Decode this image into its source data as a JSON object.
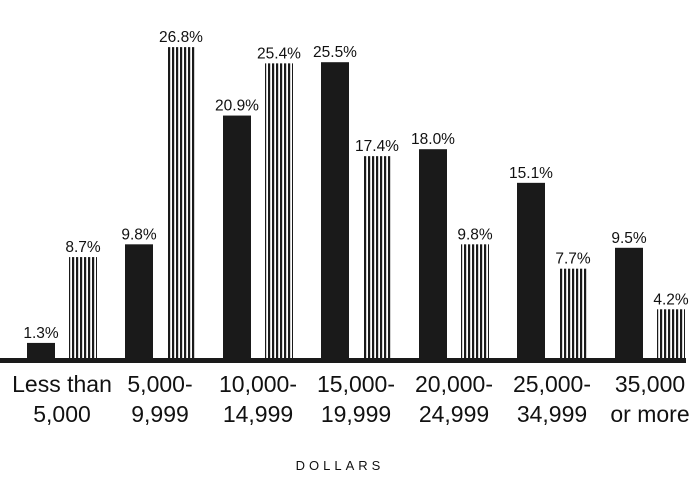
{
  "chart_data": {
    "type": "bar",
    "title": "",
    "xlabel": "DOLLARS",
    "ylabel": "",
    "ylim": [
      0,
      28
    ],
    "grid": false,
    "categories": [
      [
        "Less than",
        "5,000"
      ],
      [
        "5,000-",
        "9,999"
      ],
      [
        "10,000-",
        "14,999"
      ],
      [
        "15,000-",
        "19,999"
      ],
      [
        "20,000-",
        "24,999"
      ],
      [
        "25,000-",
        "34,999"
      ],
      [
        "35,000",
        "or more"
      ]
    ],
    "series": [
      {
        "style": "solid",
        "color": "#1a1a1a",
        "values": [
          1.3,
          9.8,
          20.9,
          25.5,
          18.0,
          15.1,
          9.5
        ],
        "labels": [
          "1.3%",
          "9.8%",
          "20.9%",
          "25.5%",
          "18.0%",
          "15.1%",
          "9.5%"
        ]
      },
      {
        "style": "vertical-stripes",
        "color": "#1a1a1a",
        "values": [
          8.7,
          26.8,
          25.4,
          17.4,
          9.8,
          7.7,
          4.2
        ],
        "labels": [
          "8.7%",
          "26.8%",
          "25.4%",
          "17.4%",
          "9.8%",
          "7.7%",
          "4.2%"
        ]
      }
    ]
  }
}
